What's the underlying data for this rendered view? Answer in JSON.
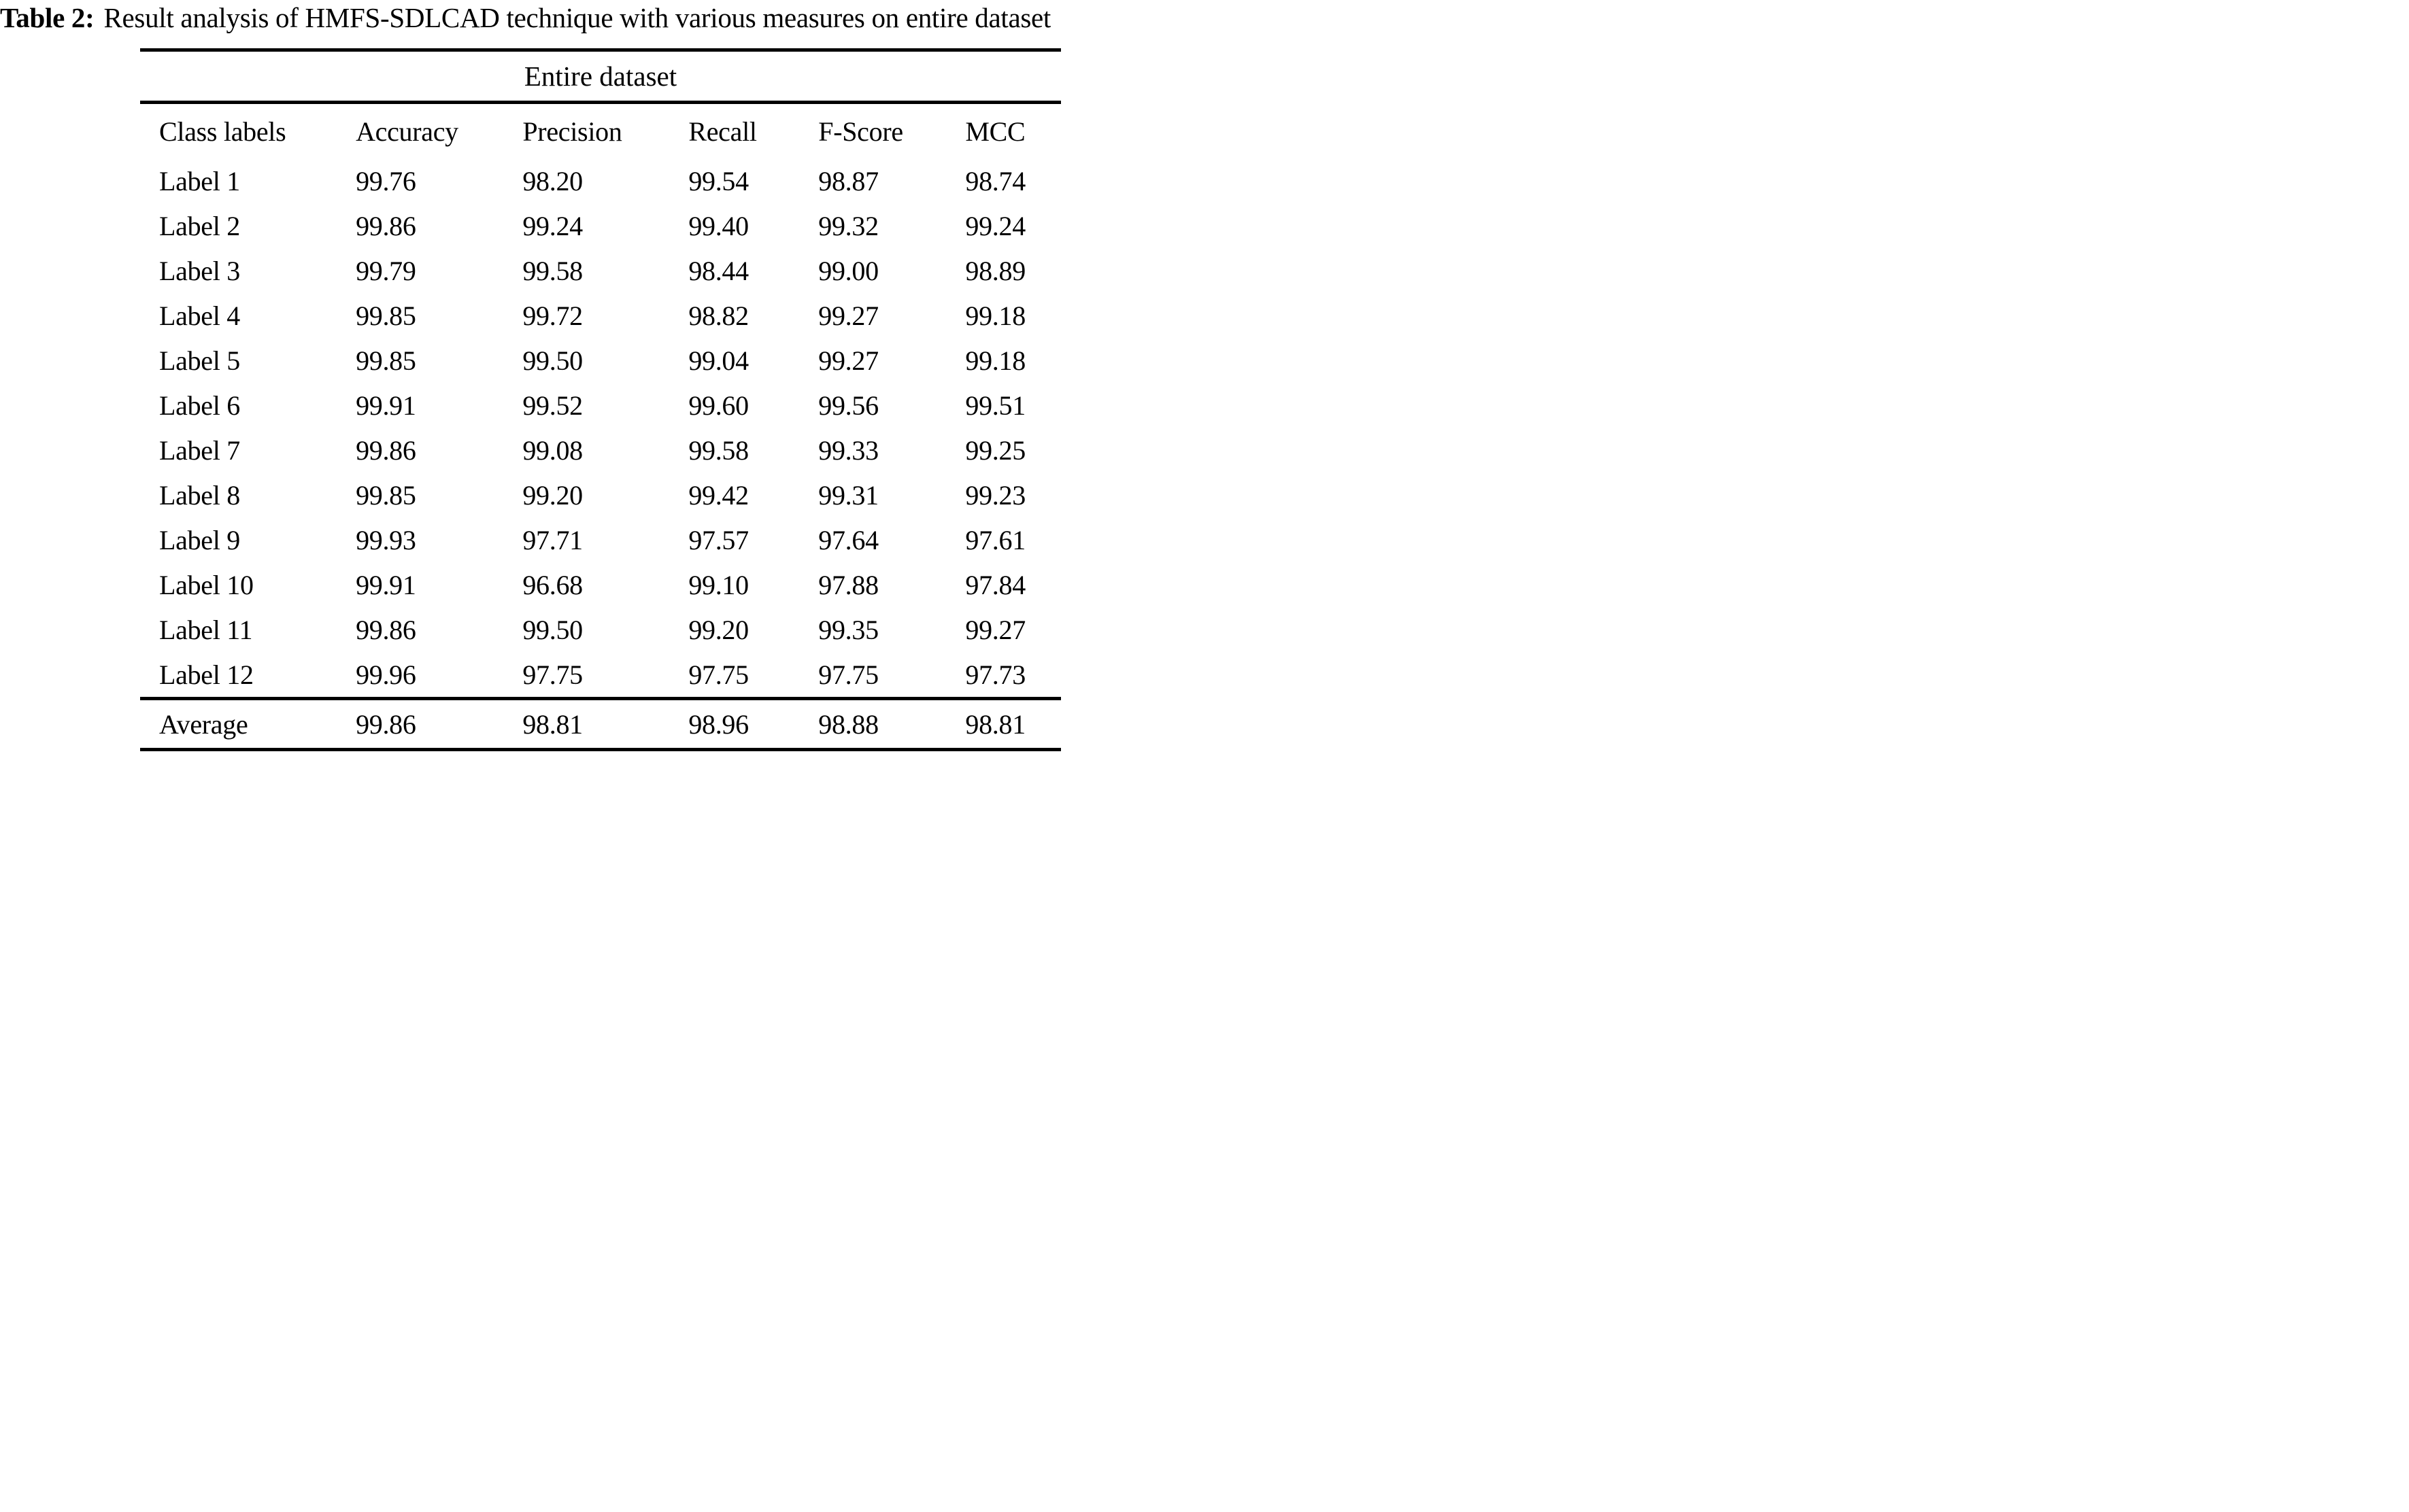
{
  "title": {
    "label": "Table 2:",
    "text": "Result analysis of HMFS-SDLCAD technique with various measures on entire dataset"
  },
  "table": {
    "group_header": "Entire dataset",
    "columns": [
      "Class labels",
      "Accuracy",
      "Precision",
      "Recall",
      "F-Score",
      "MCC"
    ],
    "rows": [
      [
        "Label 1",
        "99.76",
        "98.20",
        "99.54",
        "98.87",
        "98.74"
      ],
      [
        "Label 2",
        "99.86",
        "99.24",
        "99.40",
        "99.32",
        "99.24"
      ],
      [
        "Label 3",
        "99.79",
        "99.58",
        "98.44",
        "99.00",
        "98.89"
      ],
      [
        "Label 4",
        "99.85",
        "99.72",
        "98.82",
        "99.27",
        "99.18"
      ],
      [
        "Label 5",
        "99.85",
        "99.50",
        "99.04",
        "99.27",
        "99.18"
      ],
      [
        "Label 6",
        "99.91",
        "99.52",
        "99.60",
        "99.56",
        "99.51"
      ],
      [
        "Label 7",
        "99.86",
        "99.08",
        "99.58",
        "99.33",
        "99.25"
      ],
      [
        "Label 8",
        "99.85",
        "99.20",
        "99.42",
        "99.31",
        "99.23"
      ],
      [
        "Label 9",
        "99.93",
        "97.71",
        "97.57",
        "97.64",
        "97.61"
      ],
      [
        "Label 10",
        "99.91",
        "96.68",
        "99.10",
        "97.88",
        "97.84"
      ],
      [
        "Label 11",
        "99.86",
        "99.50",
        "99.20",
        "99.35",
        "99.27"
      ],
      [
        "Label 12",
        "99.96",
        "97.75",
        "97.75",
        "97.75",
        "97.73"
      ]
    ],
    "footer": [
      "Average",
      "99.86",
      "98.81",
      "98.96",
      "98.88",
      "98.81"
    ]
  },
  "chart_data": {
    "type": "table",
    "title": "Table 2: Result analysis of HMFS-SDLCAD technique with various measures on entire dataset",
    "group_header": "Entire dataset",
    "columns": [
      "Class labels",
      "Accuracy",
      "Precision",
      "Recall",
      "F-Score",
      "MCC"
    ],
    "rows": [
      [
        "Label 1",
        99.76,
        98.2,
        99.54,
        98.87,
        98.74
      ],
      [
        "Label 2",
        99.86,
        99.24,
        99.4,
        99.32,
        99.24
      ],
      [
        "Label 3",
        99.79,
        99.58,
        98.44,
        99.0,
        98.89
      ],
      [
        "Label 4",
        99.85,
        99.72,
        98.82,
        99.27,
        99.18
      ],
      [
        "Label 5",
        99.85,
        99.5,
        99.04,
        99.27,
        99.18
      ],
      [
        "Label 6",
        99.91,
        99.52,
        99.6,
        99.56,
        99.51
      ],
      [
        "Label 7",
        99.86,
        99.08,
        99.58,
        99.33,
        99.25
      ],
      [
        "Label 8",
        99.85,
        99.2,
        99.42,
        99.31,
        99.23
      ],
      [
        "Label 9",
        99.93,
        97.71,
        97.57,
        97.64,
        97.61
      ],
      [
        "Label 10",
        99.91,
        96.68,
        99.1,
        97.88,
        97.84
      ],
      [
        "Label 11",
        99.86,
        99.5,
        99.2,
        99.35,
        99.27
      ],
      [
        "Label 12",
        99.96,
        97.75,
        97.75,
        97.75,
        97.73
      ],
      [
        "Average",
        99.86,
        98.81,
        98.96,
        98.88,
        98.81
      ]
    ]
  }
}
